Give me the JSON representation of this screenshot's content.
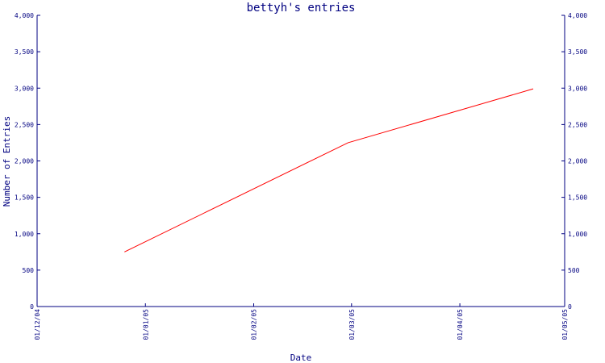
{
  "chart_data": {
    "type": "line",
    "title": "bettyh's entries",
    "xlabel": "Date",
    "ylabel": "Number of Entries",
    "x_tick_labels": [
      "01/12/04",
      "01/01/05",
      "01/02/05",
      "01/03/05",
      "01/04/05",
      "01/05/05"
    ],
    "x_tick_dates": [
      "2004-12-01",
      "2005-01-01",
      "2005-02-01",
      "2005-03-01",
      "2005-04-01",
      "2005-05-01"
    ],
    "xlim": [
      "2004-12-01",
      "2005-05-01"
    ],
    "y_tick_labels": [
      "0",
      "500",
      "1,000",
      "1,500",
      "2,000",
      "2,500",
      "3,000",
      "3,500",
      "4,000"
    ],
    "ylim": [
      0,
      4000
    ],
    "grid": false,
    "series": [
      {
        "color": "#ff0000",
        "points": [
          {
            "x": "2004-12-26",
            "y": 750
          },
          {
            "x": "2005-02-28",
            "y": 2250
          },
          {
            "x": "2005-04-22",
            "y": 2990
          }
        ]
      }
    ],
    "colors": {
      "axis": "#000080",
      "text": "#000080",
      "background": "#ffffff"
    }
  }
}
